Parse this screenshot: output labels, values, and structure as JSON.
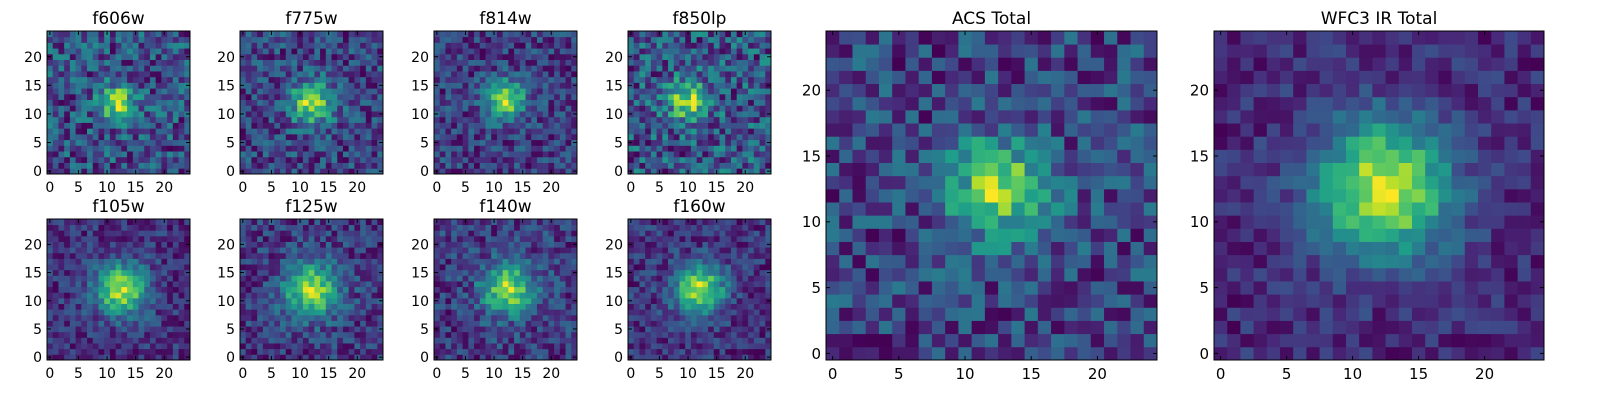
{
  "figure": {
    "background": "#ffffff",
    "colormap": "viridis",
    "grid_size": 25
  },
  "chart_data": [
    {
      "type": "heatmap",
      "title": "f606w",
      "xticks": [
        0,
        5,
        10,
        15,
        20
      ],
      "yticks": [
        0,
        5,
        10,
        15,
        20
      ],
      "xlim": [
        0,
        24
      ],
      "ylim": [
        0,
        24
      ],
      "center": [
        12,
        12
      ],
      "peak_sigma": 2.2,
      "peak_amp": 0.55,
      "base": 0.55,
      "noise": 0.45,
      "seed": 11
    },
    {
      "type": "heatmap",
      "title": "f775w",
      "xticks": [
        0,
        5,
        10,
        15,
        20
      ],
      "yticks": [
        0,
        5,
        10,
        15,
        20
      ],
      "xlim": [
        0,
        24
      ],
      "ylim": [
        0,
        24
      ],
      "center": [
        12,
        12
      ],
      "peak_sigma": 2.6,
      "peak_amp": 0.7,
      "base": 0.45,
      "noise": 0.45,
      "seed": 23
    },
    {
      "type": "heatmap",
      "title": "f814w",
      "xticks": [
        0,
        5,
        10,
        15,
        20
      ],
      "yticks": [
        0,
        5,
        10,
        15,
        20
      ],
      "xlim": [
        0,
        24
      ],
      "ylim": [
        0,
        24
      ],
      "center": [
        12,
        12.5
      ],
      "peak_sigma": 2.4,
      "peak_amp": 0.8,
      "base": 0.4,
      "noise": 0.45,
      "seed": 37
    },
    {
      "type": "heatmap",
      "title": "f850lp",
      "xticks": [
        0,
        5,
        10,
        15,
        20
      ],
      "yticks": [
        0,
        5,
        10,
        15,
        20
      ],
      "xlim": [
        0,
        24
      ],
      "ylim": [
        0,
        24
      ],
      "center": [
        10,
        12.5
      ],
      "peak_sigma": 2.4,
      "peak_amp": 0.6,
      "base": 0.45,
      "noise": 0.55,
      "seed": 41
    },
    {
      "type": "heatmap",
      "title": "f105w",
      "xticks": [
        0,
        5,
        10,
        15,
        20
      ],
      "yticks": [
        0,
        5,
        10,
        15,
        20
      ],
      "xlim": [
        0,
        24
      ],
      "ylim": [
        0,
        24
      ],
      "center": [
        12.5,
        12
      ],
      "peak_sigma": 3.2,
      "peak_amp": 0.85,
      "base": 0.38,
      "noise": 0.35,
      "seed": 53
    },
    {
      "type": "heatmap",
      "title": "f125w",
      "xticks": [
        0,
        5,
        10,
        15,
        20
      ],
      "yticks": [
        0,
        5,
        10,
        15,
        20
      ],
      "xlim": [
        0,
        24
      ],
      "ylim": [
        0,
        24
      ],
      "center": [
        12,
        12
      ],
      "peak_sigma": 3.4,
      "peak_amp": 0.8,
      "base": 0.38,
      "noise": 0.4,
      "seed": 67
    },
    {
      "type": "heatmap",
      "title": "f140w",
      "xticks": [
        0,
        5,
        10,
        15,
        20
      ],
      "yticks": [
        0,
        5,
        10,
        15,
        20
      ],
      "xlim": [
        0,
        24
      ],
      "ylim": [
        0,
        24
      ],
      "center": [
        12.5,
        12
      ],
      "peak_sigma": 3.2,
      "peak_amp": 0.75,
      "base": 0.38,
      "noise": 0.4,
      "seed": 79
    },
    {
      "type": "heatmap",
      "title": "f160w",
      "xticks": [
        0,
        5,
        10,
        15,
        20
      ],
      "yticks": [
        0,
        5,
        10,
        15,
        20
      ],
      "xlim": [
        0,
        24
      ],
      "ylim": [
        0,
        24
      ],
      "center": [
        12,
        12
      ],
      "peak_sigma": 3.0,
      "peak_amp": 0.85,
      "base": 0.33,
      "noise": 0.35,
      "seed": 83
    },
    {
      "type": "heatmap",
      "title": "ACS Total",
      "xticks": [
        0,
        5,
        10,
        15,
        20
      ],
      "yticks": [
        0,
        5,
        10,
        15,
        20
      ],
      "xlim": [
        0,
        24
      ],
      "ylim": [
        0,
        24
      ],
      "center": [
        12.5,
        12.5
      ],
      "peak_sigma": 2.6,
      "peak_amp": 0.55,
      "base": 0.5,
      "noise": 0.35,
      "seed": 97
    },
    {
      "type": "heatmap",
      "title": "WFC3 IR Total",
      "xticks": [
        0,
        5,
        10,
        15,
        20
      ],
      "yticks": [
        0,
        5,
        10,
        15,
        20
      ],
      "xlim": [
        0,
        24
      ],
      "ylim": [
        0,
        24
      ],
      "center": [
        12.5,
        12.5
      ],
      "peak_sigma": 3.6,
      "peak_amp": 0.75,
      "base": 0.36,
      "noise": 0.22,
      "seed": 101
    }
  ]
}
